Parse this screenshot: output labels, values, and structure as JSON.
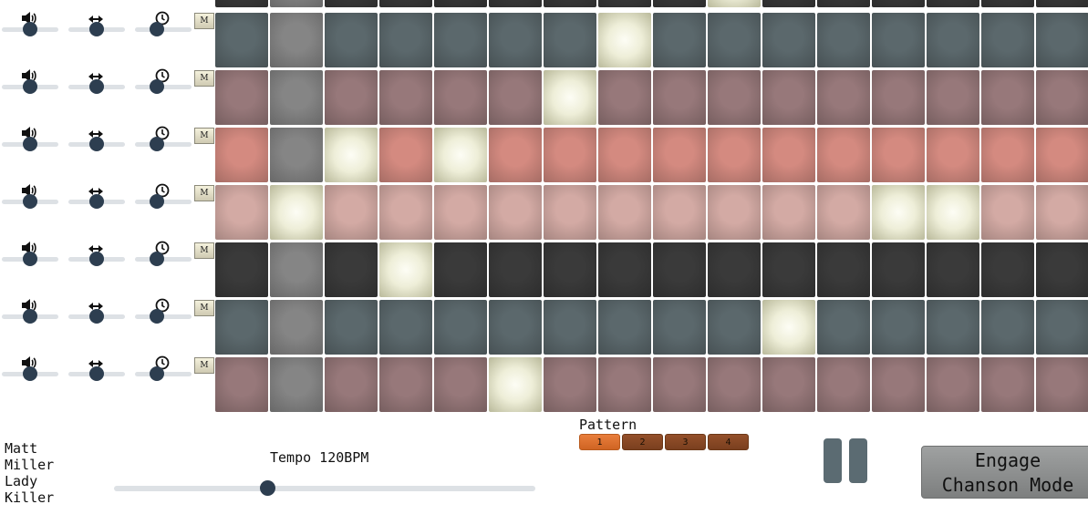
{
  "tracks": [
    {
      "colour": "#5b686c",
      "volume": 0.5,
      "pan": 0.5,
      "tempo": 0.35,
      "mute_label": "M",
      "steps": [
        0,
        0,
        0,
        0,
        0,
        0,
        0,
        1,
        0,
        0,
        0,
        0,
        0,
        0,
        0,
        0
      ]
    },
    {
      "colour": "#97787a",
      "volume": 0.5,
      "pan": 0.5,
      "tempo": 0.35,
      "mute_label": "M",
      "steps": [
        0,
        0,
        0,
        0,
        0,
        0,
        1,
        0,
        0,
        0,
        0,
        0,
        0,
        0,
        0,
        0
      ]
    },
    {
      "colour": "#d48a80",
      "volume": 0.5,
      "pan": 0.5,
      "tempo": 0.35,
      "mute_label": "M",
      "steps": [
        0,
        0,
        1,
        0,
        1,
        0,
        0,
        0,
        0,
        0,
        0,
        0,
        0,
        0,
        0,
        0
      ]
    },
    {
      "colour": "#d3aaa4",
      "volume": 0.5,
      "pan": 0.5,
      "tempo": 0.35,
      "mute_label": "M",
      "steps": [
        0,
        1,
        0,
        0,
        0,
        0,
        0,
        0,
        0,
        0,
        0,
        0,
        1,
        1,
        0,
        0
      ]
    },
    {
      "colour": "#3a3a3a",
      "volume": 0.5,
      "pan": 0.5,
      "tempo": 0.35,
      "mute_label": "M",
      "steps": [
        0,
        0,
        0,
        1,
        0,
        0,
        0,
        0,
        0,
        0,
        0,
        0,
        0,
        0,
        0,
        0
      ]
    },
    {
      "colour": "#5b686c",
      "volume": 0.5,
      "pan": 0.5,
      "tempo": 0.35,
      "mute_label": "M",
      "steps": [
        0,
        0,
        0,
        0,
        0,
        0,
        0,
        0,
        0,
        0,
        1,
        0,
        0,
        0,
        0,
        0
      ]
    },
    {
      "colour": "#97787a",
      "volume": 0.5,
      "pan": 0.5,
      "tempo": 0.35,
      "mute_label": "M",
      "steps": [
        0,
        0,
        0,
        0,
        0,
        1,
        0,
        0,
        0,
        0,
        0,
        0,
        0,
        0,
        0,
        0
      ]
    }
  ],
  "top_partial_row": {
    "colour": "#3a3a3a",
    "steps": [
      0,
      0,
      0,
      0,
      0,
      0,
      0,
      0,
      0,
      1,
      0,
      0,
      0,
      0,
      0,
      0
    ]
  },
  "playhead_step": 1,
  "playhead_colour": "#858585",
  "active_colour": "#eeeed8",
  "icons": {
    "volume": "volume-icon",
    "pan": "pan-arrows-icon",
    "tempo": "clock-icon"
  },
  "footer": {
    "author_lines": [
      "Matt",
      "Miller",
      "Lady",
      "Killer"
    ],
    "tempo_label": "Tempo 120BPM",
    "tempo_value": 0.36,
    "pattern_label": "Pattern",
    "patterns": [
      "1",
      "2",
      "3",
      "4"
    ],
    "active_pattern": 0,
    "chanson_line1": "Engage",
    "chanson_line2": "Chanson Mode"
  }
}
